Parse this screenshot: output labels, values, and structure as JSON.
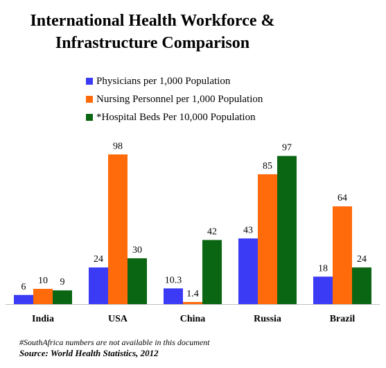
{
  "chart_data": {
    "type": "bar",
    "title": "International Health Workforce & Infrastructure Comparison",
    "categories": [
      "India",
      "USA",
      "China",
      "Russia",
      "Brazil"
    ],
    "series": [
      {
        "name": "Physicians per 1,000 Population",
        "color": "#3b3bf5",
        "values": [
          6,
          24,
          10.3,
          43,
          18
        ],
        "labels": [
          "6",
          "24",
          "10.3",
          "43",
          "18"
        ]
      },
      {
        "name": "Nursing Personnel per 1,000 Population",
        "color": "#ff6a0a",
        "values": [
          10,
          98,
          1.4,
          85,
          64
        ],
        "labels": [
          "10",
          "98",
          "1.4",
          "85",
          "64"
        ]
      },
      {
        "name": "*Hospital Beds Per 10,000 Population",
        "color": "#0a6612",
        "values": [
          9,
          30,
          42,
          97,
          24
        ],
        "labels": [
          "9",
          "30",
          "42",
          "97",
          "24"
        ]
      }
    ],
    "ylim": [
      0,
      100
    ],
    "grid": false,
    "legend_position": "top"
  },
  "title_line1": "International Health Workforce &",
  "title_line2": "Infrastructure Comparison",
  "footnote": "#SouthAfrica numbers are not available in this document",
  "source": "Source: World Health Statistics, 2012"
}
